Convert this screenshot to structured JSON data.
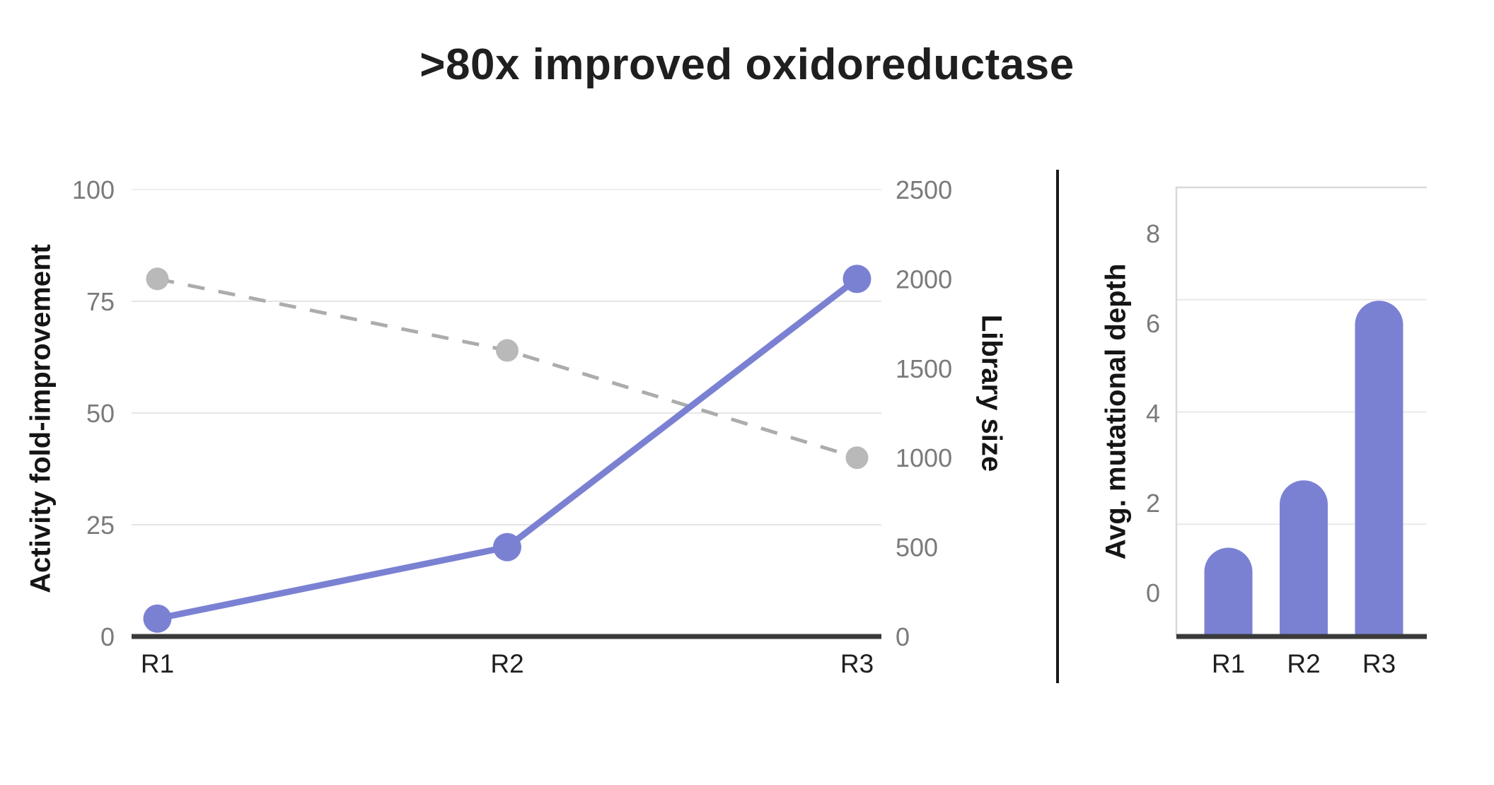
{
  "page": {
    "title": ">80x improved oxidoreductase",
    "background": "#ffffff"
  },
  "colors": {
    "title_text": "#1f1f1f",
    "accent_purple": "#7B81D2",
    "series_gray": "#b9b9b9",
    "dash_gray": "#acacac",
    "tick_gray": "#7a7a7a",
    "category_text": "#1f1f1f",
    "axis_title_text": "#151515",
    "gridline_light": "#efefef",
    "gridline": "#e6e6e6",
    "bar_gridline": "#e9e9e9",
    "plot_border": "#d9d9d9",
    "axis_dark": "#3a3a3a",
    "divider": "#1a1a1a"
  },
  "chart_data": [
    {
      "id": "activity-library-line-chart",
      "type": "line",
      "categories": [
        "R1",
        "R2",
        "R3"
      ],
      "left_axis": {
        "label": "Activity fold-improvement",
        "ticks": [
          0,
          25,
          50,
          75,
          100
        ],
        "range": [
          0,
          100
        ]
      },
      "right_axis": {
        "label": "Library size",
        "ticks": [
          0,
          500,
          1000,
          1500,
          2000,
          2500
        ],
        "range": [
          0,
          2500
        ]
      },
      "series": [
        {
          "name": "Activity fold-improvement",
          "axis": "left",
          "style": "solid",
          "values": [
            4,
            20,
            80
          ]
        },
        {
          "name": "Library size",
          "axis": "right",
          "style": "dashed",
          "values": [
            2000,
            1600,
            1000
          ]
        }
      ],
      "grid": true,
      "legend": "none"
    },
    {
      "id": "mutational-depth-bar-chart",
      "type": "bar",
      "categories": [
        "R1",
        "R2",
        "R3"
      ],
      "values": [
        1,
        2.5,
        6.5
      ],
      "ylabel": "Avg. mutational depth",
      "yticks": [
        0,
        2,
        4,
        6,
        8
      ],
      "ylim": [
        -1,
        9
      ],
      "rounded_top": true,
      "grid": true,
      "legend": "none"
    }
  ]
}
